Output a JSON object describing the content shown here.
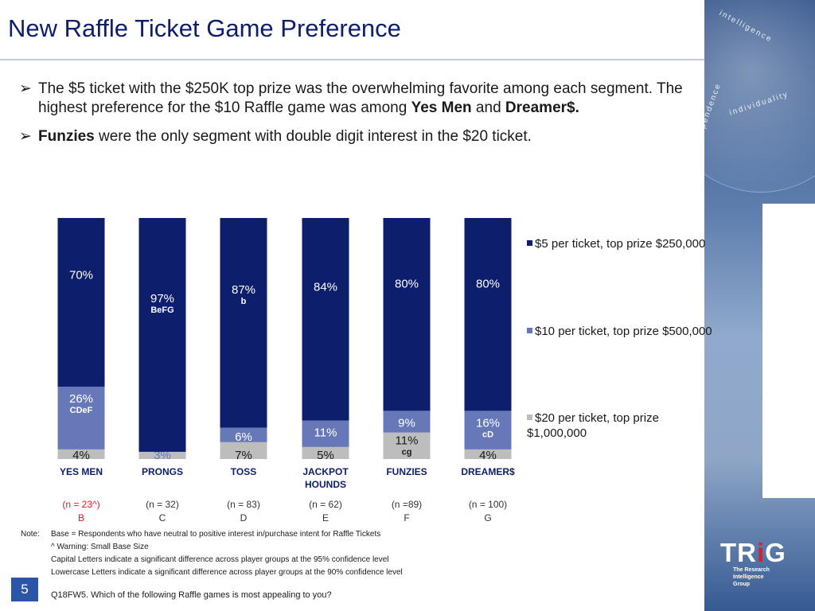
{
  "title": "New Raffle Ticket Game Preference",
  "bullets": [
    {
      "segments": [
        {
          "text": "The $5 ticket with the $250K top prize was the overwhelming favorite among each segment. The highest preference for the $10 Raffle game was among ",
          "bold": false
        },
        {
          "text": "Yes Men",
          "bold": true
        },
        {
          "text": " and ",
          "bold": false
        },
        {
          "text": "Dreamer$.",
          "bold": true
        }
      ]
    },
    {
      "segments": [
        {
          "text": "Funzies",
          "bold": true
        },
        {
          "text": " were the only segment with double digit interest in the $20 ticket.",
          "bold": false
        }
      ]
    }
  ],
  "bullet_symbol": "➢",
  "chart_data": {
    "type": "bar",
    "stacked": true,
    "categories": [
      "YES MEN",
      "PRONGS",
      "TOSS",
      "JACKPOT HOUNDS",
      "FUNZIES",
      "DREAMER$"
    ],
    "series": [
      {
        "name": "$20 per ticket, top prize $1,000,000",
        "color": "#bdbdbd",
        "values": [
          4,
          3,
          7,
          5,
          11,
          4
        ],
        "labels": [
          "4%",
          "3%",
          "7%",
          "5%",
          "11%",
          "4%"
        ],
        "sig": [
          "",
          "",
          "",
          "",
          "cg",
          ""
        ]
      },
      {
        "name": "$10 per ticket, top prize $500,000",
        "color": "#6778b8",
        "values": [
          26,
          0,
          6,
          11,
          9,
          16
        ],
        "labels": [
          "26%",
          "",
          "6%",
          "11%",
          "9%",
          "16%"
        ],
        "sig": [
          "CDeF",
          "",
          "",
          "",
          "",
          "cD"
        ]
      },
      {
        "name": "$5 per ticket, top prize $250,000",
        "color": "#0d1e6c",
        "values": [
          70,
          97,
          87,
          84,
          80,
          80
        ],
        "labels": [
          "70%",
          "97%",
          "87%",
          "84%",
          "80%",
          "80%"
        ],
        "sig": [
          "",
          "BeFG",
          "b",
          "",
          "",
          ""
        ]
      }
    ],
    "ylim": [
      0,
      100
    ],
    "legend_placement": "right",
    "base_sizes": [
      "(n = 23^)",
      "(n = 32)",
      "(n = 83)",
      "(n = 62)",
      "(n =89)",
      "(n = 100)"
    ],
    "group_letters": [
      "B",
      "C",
      "D",
      "E",
      "F",
      "G"
    ],
    "highlight_color": "#e31b23",
    "highlight_index": 0
  },
  "note": {
    "label": "Note:",
    "lines": [
      "Base = Respondents who have neutral to positive interest in/purchase intent for Raffle Tickets",
      "^ Warning: Small Base Size",
      "Capital Letters indicate a significant difference across player groups at the 95% confidence level",
      "Lowercase Letters indicate a significant difference across player groups at the 90% confidence level"
    ]
  },
  "question": "Q18FW5. Which of the following Raffle games is most appealing to you?",
  "page_number": "5",
  "logo": {
    "text_pre": "TR",
    "text_i": "i",
    "text_post": "G",
    "sub_lines": [
      "The Research",
      "Intelligence",
      "Group"
    ]
  },
  "background_words": [
    "intelligence",
    "individuality",
    "independence"
  ]
}
